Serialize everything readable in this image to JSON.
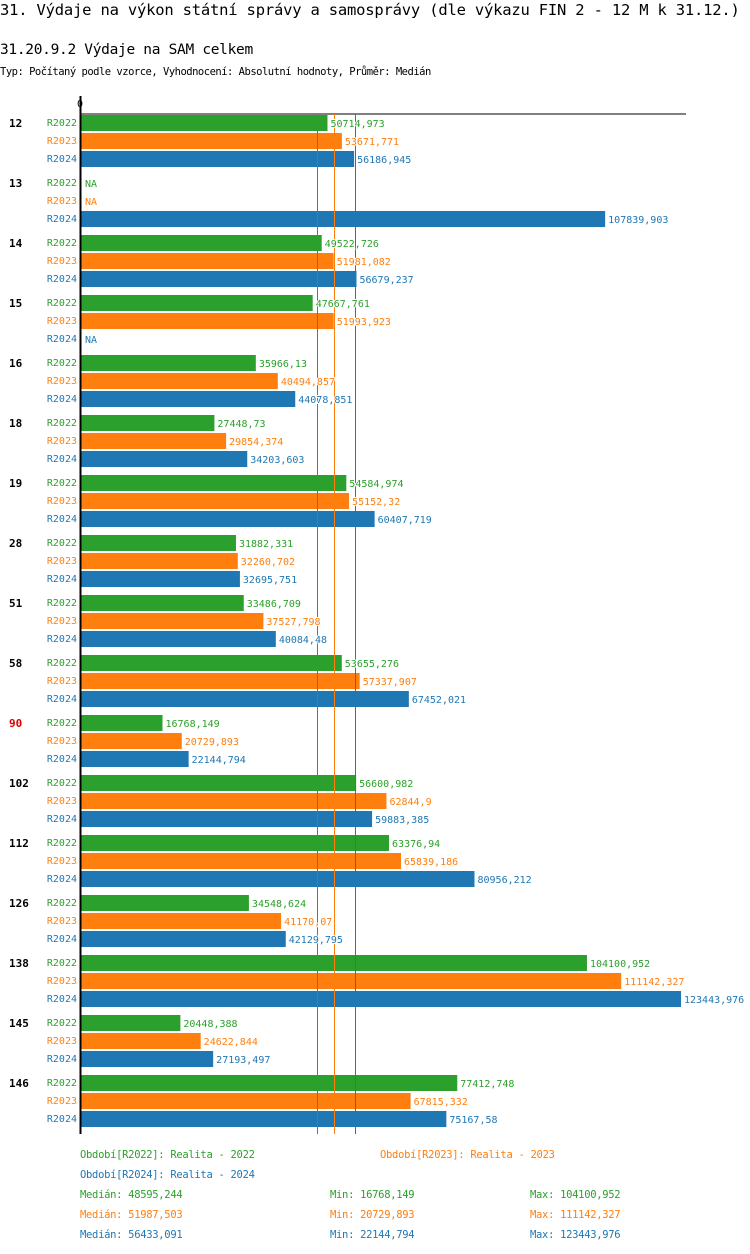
{
  "header": {
    "title": "31. Výdaje na výkon státní správy a samosprávy (dle výkazu FIN 2 - 12 M k 31.12.)",
    "subtitle": "31.20.9.2 Výdaje na SAM celkem",
    "description": "Typ: Počítaný podle vzorce, Vyhodnocení: Absolutní hodnoty, Průměr: Medián"
  },
  "colors": {
    "R2022": "#2ca02c",
    "R2023": "#ff7f0e",
    "R2024": "#1f77b4",
    "highlight_group": "#e00000",
    "axis": "#000000"
  },
  "chart_data": {
    "type": "bar",
    "orientation": "horizontal",
    "title": "31.20.9.2 Výdaje na SAM celkem",
    "xlabel": "",
    "ylabel": "",
    "x_tick_labels": [
      "0"
    ],
    "xlim": [
      0,
      123443.976
    ],
    "grid": false,
    "series_names": [
      "R2022",
      "R2023",
      "R2024"
    ],
    "categories": [
      "12",
      "13",
      "14",
      "15",
      "16",
      "18",
      "19",
      "28",
      "51",
      "58",
      "90",
      "102",
      "112",
      "126",
      "138",
      "145",
      "146"
    ],
    "highlighted_categories": [
      "90"
    ],
    "series": [
      {
        "name": "R2022",
        "values": [
          50714.973,
          null,
          49522.726,
          47667.761,
          35966.13,
          27448.73,
          54584.974,
          31882.331,
          33486.709,
          53655.276,
          16768.149,
          56600.982,
          63376.94,
          34548.624,
          104100.952,
          20448.388,
          77412.748
        ],
        "labels": [
          "50714,973",
          "NA",
          "49522,726",
          "47667,761",
          "35966,13",
          "27448,73",
          "54584,974",
          "31882,331",
          "33486,709",
          "53655,276",
          "16768,149",
          "56600,982",
          "63376,94",
          "34548,624",
          "104100,952",
          "20448,388",
          "77412,748"
        ]
      },
      {
        "name": "R2023",
        "values": [
          53671.771,
          null,
          51981.082,
          51993.923,
          40494.857,
          29854.374,
          55152.32,
          32260.702,
          37527.798,
          57337.907,
          20729.893,
          62844.9,
          65839.186,
          41170.07,
          111142.327,
          24622.844,
          67815.332
        ],
        "labels": [
          "53671,771",
          "NA",
          "51981,082",
          "51993,923",
          "40494,857",
          "29854,374",
          "55152,32",
          "32260,702",
          "37527,798",
          "57337,907",
          "20729,893",
          "62844,9",
          "65839,186",
          "41170,07",
          "111142,327",
          "24622,844",
          "67815,332"
        ]
      },
      {
        "name": "R2024",
        "values": [
          56186.945,
          107839.903,
          56679.237,
          null,
          44078.851,
          34203.603,
          60407.719,
          32695.751,
          40084.48,
          67452.021,
          22144.794,
          59883.385,
          80956.212,
          42129.795,
          123443.976,
          27193.497,
          75167.58
        ],
        "labels": [
          "56186,945",
          "107839,903",
          "56679,237",
          "NA",
          "44078,851",
          "34203,603",
          "60407,719",
          "32695,751",
          "40084,48",
          "67452,021",
          "22144,794",
          "59883,385",
          "80956,212",
          "42129,795",
          "123443,976",
          "27193,497",
          "75167,58"
        ]
      }
    ],
    "reference_lines": [
      {
        "series": "R2022",
        "type": "median",
        "value": 48595.244
      },
      {
        "series": "R2023",
        "type": "median",
        "value": 51987.503
      },
      {
        "series": "R2024",
        "type": "median",
        "value": 56433.091
      }
    ],
    "legend": {
      "placement": "bottom",
      "periods": [
        {
          "series": "R2022",
          "text": "Období[R2022]: Realita - 2022"
        },
        {
          "series": "R2023",
          "text": "Období[R2023]: Realita - 2023"
        },
        {
          "series": "R2024",
          "text": "Období[R2024]: Realita - 2024"
        }
      ],
      "stats": [
        {
          "series": "R2022",
          "median": "Medián: 48595,244",
          "min": "Min: 16768,149",
          "max": "Max: 104100,952"
        },
        {
          "series": "R2023",
          "median": "Medián: 51987,503",
          "min": "Min: 20729,893",
          "max": "Max: 111142,327"
        },
        {
          "series": "R2024",
          "median": "Medián: 56433,091",
          "min": "Min: 22144,794",
          "max": "Max: 123443,976"
        }
      ]
    }
  }
}
